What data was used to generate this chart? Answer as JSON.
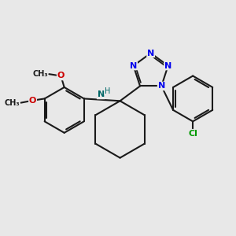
{
  "bg": "#e8e8e8",
  "bc": "#1a1a1a",
  "nc": "#0000ee",
  "oc": "#cc0000",
  "clc": "#009900",
  "nhc": "#006666",
  "lw": 1.5,
  "afs": 8,
  "sfs": 7,
  "figsize": [
    3.0,
    3.0
  ],
  "dpi": 100,
  "xlim": [
    0,
    10
  ],
  "ylim": [
    0,
    10
  ]
}
